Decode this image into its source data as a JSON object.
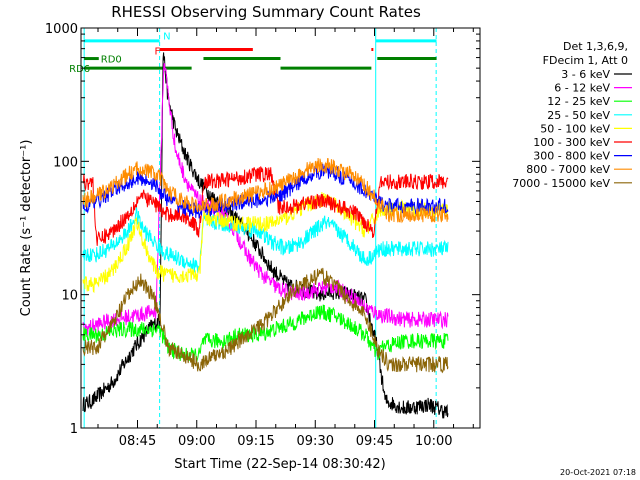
{
  "chart_data": {
    "type": "line",
    "title": "RHESSI Observing Summary Count Rates",
    "xlabel": "Start Time (22-Sep-14 08:30:42)",
    "ylabel": "Count Rate (s⁻¹ detector⁻¹)",
    "yscale": "log",
    "ylim": [
      1,
      1000
    ],
    "xlim_minutes": [
      0,
      101
    ],
    "x_ticks": [
      {
        "t": 14.3,
        "label": "08:45"
      },
      {
        "t": 29.3,
        "label": "09:00"
      },
      {
        "t": 44.3,
        "label": "09:15"
      },
      {
        "t": 59.3,
        "label": "09:30"
      },
      {
        "t": 74.3,
        "label": "09:45"
      },
      {
        "t": 89.3,
        "label": "10:00"
      }
    ],
    "y_ticks": [
      {
        "v": 1,
        "label": "1"
      },
      {
        "v": 10,
        "label": "10"
      },
      {
        "v": 100,
        "label": "100"
      },
      {
        "v": 1000,
        "label": "1000"
      }
    ],
    "legend_header": [
      "Det 1,3,6,9,",
      "FDecim 1, Att 0"
    ],
    "grid": false,
    "legend_position": "right",
    "series": [
      {
        "name": "3 - 6 keV",
        "color": "#000000",
        "points": [
          [
            0.5,
            1.5
          ],
          [
            3,
            1.6
          ],
          [
            8,
            2.2
          ],
          [
            13,
            3.8
          ],
          [
            17,
            5.5
          ],
          [
            20,
            6.5
          ],
          [
            20.8,
            700
          ],
          [
            22,
            300
          ],
          [
            24,
            170
          ],
          [
            26,
            120
          ],
          [
            28,
            90
          ],
          [
            30,
            70
          ],
          [
            33,
            55
          ],
          [
            36,
            45
          ],
          [
            39,
            38
          ],
          [
            42,
            30
          ],
          [
            45,
            22
          ],
          [
            48,
            16
          ],
          [
            52,
            12
          ],
          [
            56,
            11
          ],
          [
            60,
            10
          ],
          [
            64,
            10.5
          ],
          [
            68,
            10
          ],
          [
            72,
            9
          ],
          [
            75,
            4
          ],
          [
            77,
            1.6
          ],
          [
            82,
            1.4
          ],
          [
            88,
            1.5
          ],
          [
            93,
            1.3
          ]
        ]
      },
      {
        "name": "6 - 12 keV",
        "color": "#ff00ff",
        "points": [
          [
            0.5,
            5.5
          ],
          [
            8,
            6.5
          ],
          [
            14,
            7
          ],
          [
            19,
            7.5
          ],
          [
            21,
            600
          ],
          [
            22.5,
            250
          ],
          [
            24,
            120
          ],
          [
            26,
            80
          ],
          [
            28,
            60
          ],
          [
            30,
            50
          ],
          [
            33,
            45
          ],
          [
            36,
            40
          ],
          [
            39,
            30
          ],
          [
            42,
            20
          ],
          [
            46,
            14
          ],
          [
            50,
            11
          ],
          [
            55,
            10
          ],
          [
            60,
            11
          ],
          [
            64,
            11.5
          ],
          [
            68,
            10
          ],
          [
            72,
            8
          ],
          [
            76,
            7
          ],
          [
            82,
            6.5
          ],
          [
            88,
            6.5
          ],
          [
            93,
            6.5
          ]
        ]
      },
      {
        "name": "12 - 25 keV",
        "color": "#00ff00",
        "points": [
          [
            0.5,
            5
          ],
          [
            5,
            5
          ],
          [
            10,
            5.5
          ],
          [
            15,
            5.5
          ],
          [
            20,
            5.5
          ],
          [
            22,
            4
          ],
          [
            26,
            3.5
          ],
          [
            30,
            3.5
          ],
          [
            31,
            4.5
          ],
          [
            36,
            4.5
          ],
          [
            40,
            5
          ],
          [
            45,
            5
          ],
          [
            49,
            5.5
          ],
          [
            53,
            6
          ],
          [
            58,
            7
          ],
          [
            60,
            7.5
          ],
          [
            64,
            7
          ],
          [
            68,
            6
          ],
          [
            72,
            5
          ],
          [
            75,
            3.5
          ],
          [
            76,
            4
          ],
          [
            82,
            4.5
          ],
          [
            88,
            4.5
          ],
          [
            93,
            4.5
          ]
        ]
      },
      {
        "name": "25 - 50 keV",
        "color": "#00ffff",
        "points": [
          [
            0.5,
            20
          ],
          [
            4,
            20
          ],
          [
            8,
            23
          ],
          [
            12,
            30
          ],
          [
            14,
            40
          ],
          [
            16,
            30
          ],
          [
            19,
            24
          ],
          [
            20,
            22
          ],
          [
            22,
            20
          ],
          [
            26,
            18
          ],
          [
            30,
            16
          ],
          [
            31,
            36
          ],
          [
            36,
            34
          ],
          [
            40,
            32
          ],
          [
            45,
            30
          ],
          [
            48,
            25
          ],
          [
            52,
            22
          ],
          [
            56,
            25
          ],
          [
            59,
            30
          ],
          [
            62,
            35
          ],
          [
            65,
            30
          ],
          [
            68,
            25
          ],
          [
            72,
            18
          ],
          [
            76,
            22
          ],
          [
            82,
            22
          ],
          [
            88,
            22
          ],
          [
            93,
            22
          ]
        ]
      },
      {
        "name": "50 - 100 keV",
        "color": "#ffff00",
        "points": [
          [
            0.5,
            12
          ],
          [
            4,
            12
          ],
          [
            8,
            15
          ],
          [
            12,
            24
          ],
          [
            14,
            35
          ],
          [
            16,
            24
          ],
          [
            19,
            15
          ],
          [
            22,
            14
          ],
          [
            26,
            14
          ],
          [
            30,
            14
          ],
          [
            31,
            38
          ],
          [
            36,
            36
          ],
          [
            40,
            34
          ],
          [
            45,
            34
          ],
          [
            48,
            34
          ],
          [
            52,
            38
          ],
          [
            56,
            45
          ],
          [
            59,
            50
          ],
          [
            62,
            52
          ],
          [
            65,
            45
          ],
          [
            68,
            38
          ],
          [
            72,
            30
          ],
          [
            76,
            44
          ],
          [
            82,
            44
          ],
          [
            88,
            44
          ],
          [
            93,
            44
          ]
        ]
      },
      {
        "name": "100 - 300 keV",
        "color": "#ff0000",
        "points": [
          [
            0.5,
            70
          ],
          [
            3,
            70
          ],
          [
            4,
            25
          ],
          [
            8,
            30
          ],
          [
            12,
            40
          ],
          [
            15,
            55
          ],
          [
            18,
            50
          ],
          [
            20,
            45
          ],
          [
            21,
            40
          ],
          [
            24,
            40
          ],
          [
            27,
            38
          ],
          [
            30,
            30
          ],
          [
            31,
            70
          ],
          [
            36,
            72
          ],
          [
            40,
            75
          ],
          [
            44,
            80
          ],
          [
            48,
            80
          ],
          [
            50,
            45
          ],
          [
            54,
            46
          ],
          [
            58,
            50
          ],
          [
            62,
            50
          ],
          [
            66,
            45
          ],
          [
            70,
            40
          ],
          [
            74,
            30
          ],
          [
            76,
            70
          ],
          [
            82,
            70
          ],
          [
            88,
            70
          ],
          [
            93,
            70
          ]
        ]
      },
      {
        "name": "300 - 800 keV",
        "color": "#0000ff",
        "points": [
          [
            0.5,
            45
          ],
          [
            4,
            50
          ],
          [
            8,
            60
          ],
          [
            12,
            70
          ],
          [
            15,
            75
          ],
          [
            18,
            70
          ],
          [
            20,
            60
          ],
          [
            22,
            52
          ],
          [
            26,
            45
          ],
          [
            30,
            42
          ],
          [
            34,
            45
          ],
          [
            38,
            48
          ],
          [
            42,
            50
          ],
          [
            46,
            52
          ],
          [
            50,
            55
          ],
          [
            54,
            65
          ],
          [
            58,
            80
          ],
          [
            61,
            85
          ],
          [
            64,
            82
          ],
          [
            68,
            72
          ],
          [
            72,
            60
          ],
          [
            75,
            50
          ],
          [
            78,
            46
          ],
          [
            82,
            46
          ],
          [
            88,
            46
          ],
          [
            93,
            46
          ]
        ]
      },
      {
        "name": "800 - 7000 keV",
        "color": "#ff8c00",
        "points": [
          [
            0.5,
            50
          ],
          [
            4,
            55
          ],
          [
            8,
            65
          ],
          [
            12,
            80
          ],
          [
            15,
            90
          ],
          [
            18,
            82
          ],
          [
            20,
            75
          ],
          [
            22,
            60
          ],
          [
            26,
            50
          ],
          [
            30,
            45
          ],
          [
            34,
            48
          ],
          [
            38,
            52
          ],
          [
            42,
            55
          ],
          [
            46,
            60
          ],
          [
            50,
            65
          ],
          [
            54,
            75
          ],
          [
            58,
            90
          ],
          [
            61,
            95
          ],
          [
            64,
            90
          ],
          [
            68,
            80
          ],
          [
            72,
            65
          ],
          [
            75,
            50
          ],
          [
            78,
            40
          ],
          [
            82,
            40
          ],
          [
            88,
            40
          ],
          [
            93,
            40
          ]
        ]
      },
      {
        "name": "7000 - 15000 keV",
        "color": "#8b6508",
        "points": [
          [
            0.5,
            4
          ],
          [
            4,
            4
          ],
          [
            8,
            6
          ],
          [
            12,
            10
          ],
          [
            15,
            13
          ],
          [
            18,
            10
          ],
          [
            20,
            7
          ],
          [
            22,
            4
          ],
          [
            26,
            3.5
          ],
          [
            30,
            3
          ],
          [
            34,
            3.5
          ],
          [
            38,
            4
          ],
          [
            42,
            5
          ],
          [
            46,
            6
          ],
          [
            50,
            8
          ],
          [
            54,
            11
          ],
          [
            58,
            13
          ],
          [
            61,
            14
          ],
          [
            64,
            12
          ],
          [
            68,
            9
          ],
          [
            72,
            7
          ],
          [
            75,
            4
          ],
          [
            78,
            3
          ],
          [
            82,
            3
          ],
          [
            88,
            3
          ],
          [
            93,
            3
          ]
        ]
      }
    ],
    "annotations": {
      "vertical_lines": [
        {
          "t": 0.8,
          "style": "solid",
          "color": "#00ffff"
        },
        {
          "t": 19.9,
          "style": "dashed",
          "color": "#00ffff"
        },
        {
          "t": 74.6,
          "style": "solid",
          "color": "#00ffff"
        },
        {
          "t": 89.9,
          "style": "dashed",
          "color": "#00ffff"
        }
      ],
      "flag_bars": [
        {
          "label": "",
          "color": "#00ffff",
          "value": 800,
          "segments": [
            [
              0.8,
              19.9
            ],
            [
              74.6,
              90.0
            ]
          ]
        },
        {
          "label": "F",
          "color": "#ff0000",
          "value": 690,
          "segments": [
            [
              19.9,
              43.5
            ],
            [
              73.5,
              74.0
            ]
          ]
        },
        {
          "label": "RD0",
          "color": "#008000",
          "value": 590,
          "segments": [
            [
              0.8,
              4.5
            ],
            [
              31.0,
              50.5
            ],
            [
              75.0,
              90.0
            ]
          ]
        },
        {
          "label": "RD6",
          "color": "#008000",
          "value": 500,
          "segments": [
            [
              0.8,
              28.0
            ],
            [
              50.5,
              73.5
            ]
          ]
        }
      ],
      "markers": [
        {
          "label": "N",
          "t": 20.8,
          "value": 880,
          "color": "#00ffff"
        },
        {
          "label": "F",
          "t": 18.6,
          "value": 680,
          "color": "#ff0000"
        },
        {
          "label": "RD0",
          "t": 5.0,
          "value": 590,
          "color": "#008000"
        },
        {
          "label": "RD6",
          "t": -3.0,
          "value": 500,
          "color": "#008000"
        }
      ]
    }
  },
  "footer": {
    "timestamp": "20-Oct-2021 07:18"
  }
}
